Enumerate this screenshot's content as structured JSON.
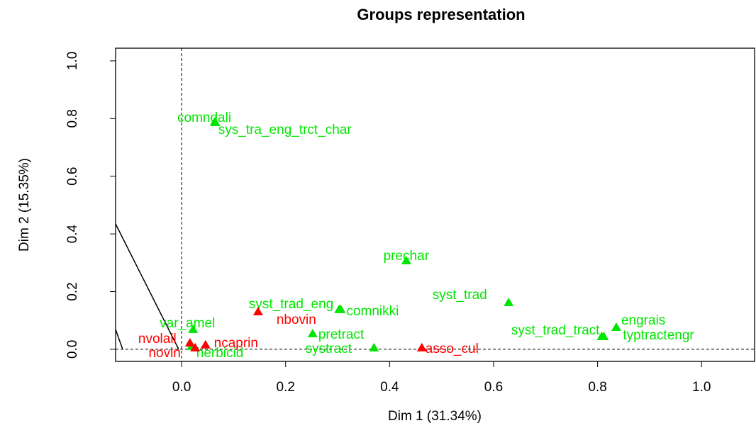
{
  "chart_data": {
    "type": "scatter",
    "title": "Groups representation",
    "x_label": "Dim 1 (31.34%)",
    "y_label": "Dim 2 (15.35%)",
    "xlim": [
      -0.127,
      1.102
    ],
    "ylim": [
      -0.042,
      1.044
    ],
    "xticks": [
      {
        "value": 0,
        "label": "0.0"
      },
      {
        "value": 0.2,
        "label": "0.2"
      },
      {
        "value": 0.4,
        "label": "0.4"
      },
      {
        "value": 0.6,
        "label": "0.6"
      },
      {
        "value": 0.8,
        "label": "0.8"
      },
      {
        "value": 1,
        "label": "1.0"
      }
    ],
    "yticks": [
      {
        "value": 0,
        "label": "0.0"
      },
      {
        "value": 0.2,
        "label": "0.2"
      },
      {
        "value": 0.4,
        "label": "0.4"
      },
      {
        "value": 0.6,
        "label": "0.6"
      },
      {
        "value": 0.8,
        "label": "0.8"
      },
      {
        "value": 1,
        "label": "1.0"
      }
    ],
    "series": [
      {
        "color": "#00e600",
        "labels": [
          "comndali",
          "sys_tra_eng_trct_char",
          "prechar",
          "syst_trad",
          "comnikki",
          "syst_trad_eng",
          "var_amel",
          "engrais",
          "typtractengr",
          "syst_trad_tract",
          "pretract",
          "systract",
          "herbicid"
        ],
        "x": [
          0.064,
          0.065,
          0.432,
          0.629,
          0.306,
          0.303,
          0.022,
          0.836,
          0.812,
          0.808,
          0.252,
          0.37,
          0.019
        ],
        "y": [
          0.789,
          0.786,
          0.307,
          0.162,
          0.138,
          0.138,
          0.069,
          0.076,
          0.044,
          0.044,
          0.054,
          0.005,
          0.01
        ]
      },
      {
        "color": "#ff0000",
        "labels": [
          "nbovin",
          "asso_cul",
          "nvolail",
          "ncaprin",
          "novin"
        ],
        "x": [
          0.147,
          0.462,
          0.016,
          0.046,
          0.026
        ],
        "y": [
          0.13,
          0.005,
          0.022,
          0.015,
          0.005
        ]
      }
    ]
  }
}
